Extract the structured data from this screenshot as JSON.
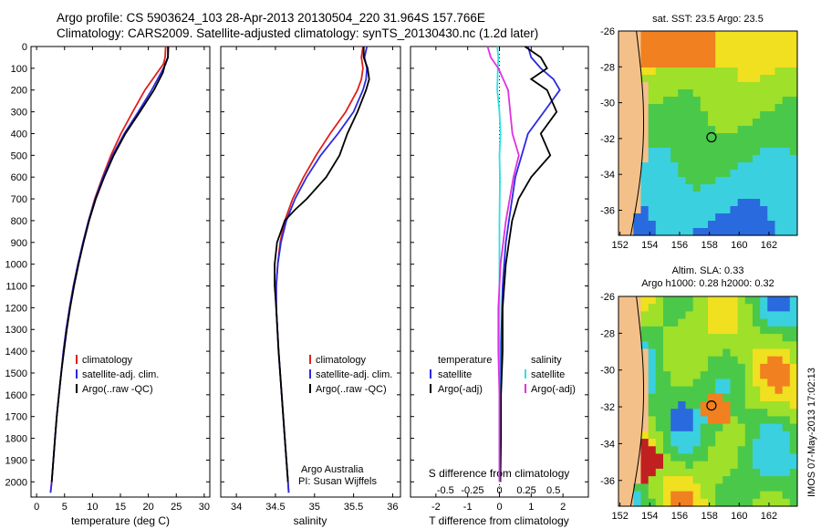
{
  "header": {
    "line1": "Argo profile: CS 5903624_103 28-Apr-2013 20130504_220 31.964S 157.766E",
    "line2": "Climatology: CARS2009. Satellite-adjusted climatology: synTS_20130430.nc (1.2d later)"
  },
  "colors": {
    "red": "#e0201c",
    "blue": "#2a2ae0",
    "black": "#000000",
    "cyan": "#30e0e0",
    "magenta": "#e030e0",
    "land": "#f4c08a",
    "coast": "#000000"
  },
  "chart_data": [
    {
      "type": "line",
      "id": "temperature",
      "xlabel": "temperature (deg C)",
      "ylabel": "",
      "xlim": [
        -1,
        31
      ],
      "ylim": [
        2070,
        0
      ],
      "xticks": [
        0,
        5,
        10,
        15,
        20,
        25,
        30
      ],
      "yticks": [
        0,
        100,
        200,
        300,
        400,
        500,
        600,
        700,
        800,
        900,
        1000,
        1100,
        1200,
        1300,
        1400,
        1500,
        1600,
        1700,
        1800,
        1900,
        2000
      ],
      "legend": [
        "climatology",
        "satellite-adj. clim.",
        "Argo(..raw -QC)"
      ],
      "series": [
        {
          "name": "climatology",
          "color": "red",
          "depth": [
            0,
            50,
            80,
            120,
            200,
            300,
            400,
            500,
            600,
            700,
            800,
            900,
            1000,
            1100,
            1200,
            1300,
            1400,
            1500,
            1600,
            1700,
            1800,
            1900,
            2000,
            2050
          ],
          "values": [
            23.1,
            23.0,
            22.7,
            21.6,
            19.4,
            17.2,
            15.1,
            13.3,
            11.8,
            10.4,
            9.3,
            8.3,
            7.4,
            6.6,
            5.9,
            5.3,
            4.8,
            4.4,
            4.0,
            3.6,
            3.3,
            3.0,
            2.7,
            2.5
          ]
        },
        {
          "name": "satellite-adj. clim.",
          "color": "blue",
          "depth": [
            0,
            50,
            80,
            120,
            200,
            300,
            400,
            500,
            600,
            700,
            800,
            900,
            1000,
            1100,
            1200,
            1300,
            1400,
            1500,
            1600,
            1700,
            1800,
            1900,
            2000,
            2050
          ],
          "values": [
            23.6,
            23.5,
            23.1,
            22.3,
            20.6,
            18.2,
            15.7,
            13.6,
            11.9,
            10.5,
            9.3,
            8.3,
            7.4,
            6.6,
            5.9,
            5.3,
            4.8,
            4.4,
            4.0,
            3.6,
            3.3,
            3.0,
            2.7,
            2.5
          ]
        },
        {
          "name": "Argo(..raw -QC)",
          "color": "black",
          "depth": [
            0,
            50,
            80,
            120,
            200,
            300,
            400,
            500,
            600,
            700,
            800,
            900,
            1000,
            1100,
            1200,
            1300,
            1400,
            1500,
            1600,
            1700,
            1800,
            1900,
            2000
          ],
          "values": [
            23.5,
            23.5,
            23.0,
            22.6,
            21.0,
            18.5,
            15.9,
            13.8,
            12.1,
            10.6,
            9.4,
            8.4,
            7.5,
            6.7,
            6.0,
            5.4,
            4.9,
            4.4,
            4.0,
            3.6,
            3.3,
            3.0,
            2.7
          ]
        }
      ]
    },
    {
      "type": "line",
      "id": "salinity",
      "xlabel": "salinity",
      "xlim": [
        33.8,
        36.1
      ],
      "ylim": [
        2070,
        0
      ],
      "xticks": [
        34,
        34.5,
        35,
        35.5,
        36
      ],
      "xticklabels": [
        "34",
        "34.5",
        "35",
        "35.5",
        "36"
      ],
      "legend": [
        "climatology",
        "satellite-adj. clim.",
        "Argo(..raw -QC)"
      ],
      "annotation": [
        "Argo Australia",
        "PI: Susan Wijffels"
      ],
      "series": [
        {
          "name": "climatology",
          "color": "red",
          "depth": [
            0,
            50,
            100,
            150,
            200,
            300,
            400,
            500,
            600,
            700,
            800,
            900,
            1000,
            1100,
            1200,
            1400,
            1600,
            1800,
            2000,
            2050
          ],
          "values": [
            35.62,
            35.6,
            35.62,
            35.6,
            35.55,
            35.4,
            35.2,
            35.02,
            34.86,
            34.72,
            34.62,
            34.56,
            34.53,
            34.51,
            34.51,
            34.54,
            34.58,
            34.62,
            34.66,
            34.67
          ]
        },
        {
          "name": "satellite-adj. clim.",
          "color": "blue",
          "depth": [
            0,
            50,
            100,
            150,
            200,
            300,
            400,
            500,
            600,
            700,
            800,
            900,
            1000,
            1100,
            1200,
            1400,
            1600,
            1800,
            2000,
            2050
          ],
          "values": [
            35.67,
            35.64,
            35.67,
            35.66,
            35.62,
            35.5,
            35.3,
            35.08,
            34.9,
            34.75,
            34.64,
            34.57,
            34.53,
            34.51,
            34.51,
            34.54,
            34.58,
            34.62,
            34.66,
            34.67
          ]
        },
        {
          "name": "Argo(..raw -QC)",
          "color": "black",
          "depth": [
            0,
            50,
            100,
            150,
            200,
            300,
            400,
            500,
            600,
            700,
            750,
            800,
            900,
            1000,
            1100,
            1200,
            1400,
            1600,
            1800,
            2000
          ],
          "values": [
            35.63,
            35.63,
            35.68,
            35.7,
            35.66,
            35.55,
            35.42,
            35.32,
            35.15,
            34.9,
            34.75,
            34.62,
            34.52,
            34.49,
            34.49,
            34.51,
            34.54,
            34.58,
            34.62,
            34.66
          ]
        }
      ]
    },
    {
      "type": "line",
      "id": "difference",
      "xlabel": "T difference from climatology",
      "xlabel_top": "S difference from climatology",
      "xlim": [
        -2.8,
        2.8
      ],
      "ylim": [
        2070,
        0
      ],
      "xticks_T": [
        -2,
        -1,
        0,
        1,
        2
      ],
      "xticks_S": [
        -0.5,
        -0.25,
        0,
        0.25,
        0.5
      ],
      "xticks_S_labels": [
        "-0.5",
        "-0.25",
        "0",
        "0.25",
        "0.5"
      ],
      "legend_left_title": "temperature",
      "legend_right_title": "salinity",
      "legend_left": [
        "satellite",
        "Argo(-adj)"
      ],
      "legend_right": [
        "satellite",
        "Argo(-adj)"
      ],
      "series": [
        {
          "name": "temperature satellite",
          "color": "blue",
          "depth": [
            0,
            50,
            100,
            150,
            200,
            300,
            400,
            500,
            600,
            700,
            800,
            900,
            1000,
            1100,
            1200,
            1400,
            1600,
            1800,
            2000
          ],
          "values": [
            0.9,
            1.0,
            1.3,
            1.7,
            1.9,
            1.4,
            0.9,
            0.7,
            0.5,
            0.4,
            0.3,
            0.2,
            0.15,
            0.1,
            0.08,
            0.05,
            0.04,
            0.03,
            0.02
          ]
        },
        {
          "name": "temperature Argo(-adj)",
          "color": "black",
          "depth": [
            0,
            50,
            100,
            150,
            200,
            300,
            400,
            500,
            600,
            700,
            800,
            900,
            1000,
            1100,
            1200,
            1400,
            1600,
            1800,
            2000
          ],
          "values": [
            0.8,
            1.3,
            1.5,
            1.0,
            1.5,
            1.8,
            1.3,
            1.6,
            1.0,
            0.6,
            0.4,
            0.3,
            0.2,
            0.15,
            0.1,
            0.1,
            0.05,
            0.05,
            0.03
          ]
        },
        {
          "name": "salinity satellite",
          "color": "cyan",
          "depth": [
            0,
            50,
            100,
            200,
            300,
            400,
            500,
            600,
            800,
            1000,
            1200,
            1400,
            1600,
            1800,
            2000
          ],
          "values": [
            -0.02,
            -0.01,
            -0.015,
            -0.02,
            0.0,
            0.01,
            0.0,
            0.005,
            0.0,
            0.0,
            0.0,
            0.0,
            0.0,
            0.0,
            0.0
          ]
        },
        {
          "name": "salinity Argo(-adj)",
          "color": "magenta",
          "depth": [
            0,
            50,
            100,
            200,
            300,
            400,
            500,
            600,
            800,
            1000,
            1200,
            1400,
            1600,
            1800,
            2000
          ],
          "values": [
            -0.11,
            -0.08,
            -0.01,
            0.08,
            0.1,
            0.12,
            0.18,
            0.13,
            0.06,
            0.01,
            -0.01,
            -0.01,
            0.0,
            0.0,
            0.0
          ]
        }
      ]
    }
  ],
  "maps": [
    {
      "id": "sst",
      "title": "sat. SST: 23.5 Argo: 23.5",
      "title2": "",
      "xticks": [
        "152",
        "154",
        "156",
        "158",
        "160",
        "162"
      ],
      "yticks": [
        "-26",
        "-28",
        "-30",
        "-32",
        "-34",
        "-36"
      ]
    },
    {
      "id": "sla",
      "title": "Altim. SLA: 0.33",
      "title2": "Argo h1000: 0.28 h2000: 0.32",
      "xticks": [
        "152",
        "154",
        "156",
        "158",
        "160",
        "162"
      ],
      "yticks": [
        "-26",
        "-28",
        "-30",
        "-32",
        "-34",
        "-36"
      ]
    }
  ],
  "footer": {
    "watermark": "IMOS 07-May-2013 17:02:13"
  }
}
